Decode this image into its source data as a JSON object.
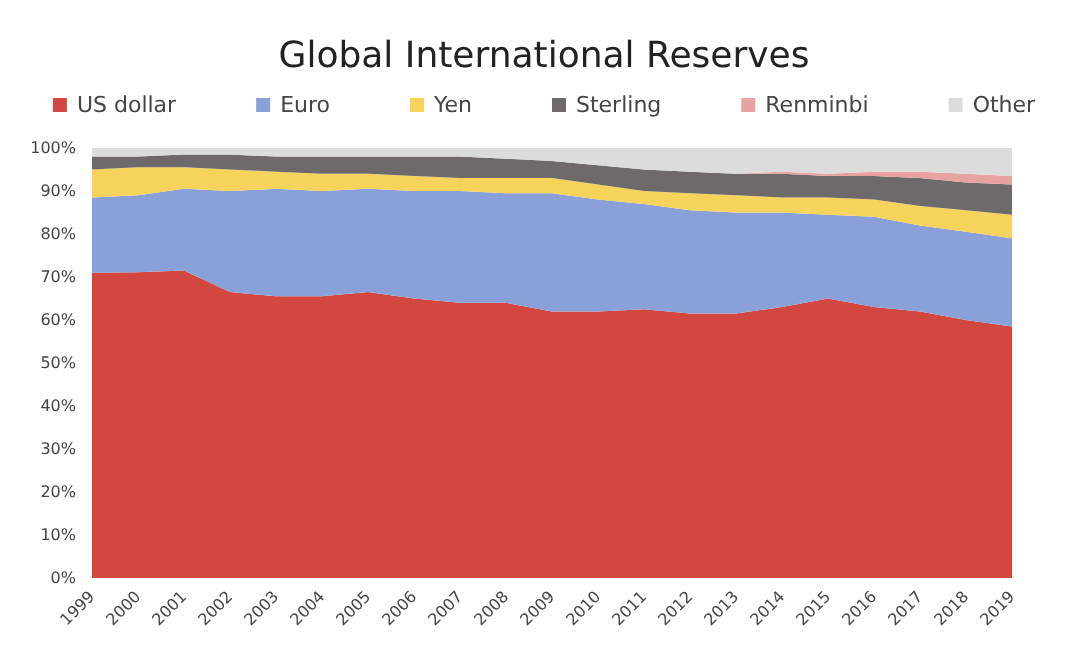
{
  "chart_data": {
    "type": "area",
    "title": "Global International Reserves",
    "stacked": true,
    "legend": "top",
    "grid": false,
    "categories": [
      "1999",
      "2000",
      "2001",
      "2002",
      "2003",
      "2004",
      "2005",
      "2006",
      "2007",
      "2008",
      "2009",
      "2010",
      "2011",
      "2012",
      "2013",
      "2014",
      "2015",
      "2016",
      "2017",
      "2018",
      "2019"
    ],
    "ylim": [
      0,
      100
    ],
    "yticks": [
      {
        "value": 0,
        "label": "0%"
      },
      {
        "value": 10,
        "label": "10%"
      },
      {
        "value": 20,
        "label": "20%"
      },
      {
        "value": 30,
        "label": "30%"
      },
      {
        "value": 40,
        "label": "40%"
      },
      {
        "value": 50,
        "label": "50%"
      },
      {
        "value": 60,
        "label": "60%"
      },
      {
        "value": 70,
        "label": "70%"
      },
      {
        "value": 80,
        "label": "80%"
      },
      {
        "value": 90,
        "label": "90%"
      },
      {
        "value": 100,
        "label": "100%"
      }
    ],
    "series": [
      {
        "name": "US dollar",
        "color": "#d2473f",
        "values": [
          71,
          71.1,
          71.5,
          66.5,
          65.5,
          65.5,
          66.5,
          65,
          64,
          64,
          62,
          62,
          62.5,
          61.5,
          61.5,
          63,
          65,
          63,
          62,
          60,
          58.5
        ]
      },
      {
        "name": "Euro",
        "color": "#8aa0d8",
        "values": [
          17.5,
          17.9,
          19,
          23.5,
          25,
          24.5,
          24,
          25,
          26,
          25.5,
          27.5,
          26,
          24.5,
          24,
          23.5,
          22,
          19.5,
          21,
          20,
          20.5,
          20.5
        ]
      },
      {
        "name": "Yen",
        "color": "#f6d35b",
        "values": [
          6.5,
          6.5,
          5,
          5,
          4,
          4,
          3.5,
          3.5,
          3,
          3.5,
          3.5,
          3.5,
          3,
          4,
          4,
          3.5,
          4,
          4,
          4.5,
          5,
          5.5
        ]
      },
      {
        "name": "Sterling",
        "color": "#6e6a6c",
        "values": [
          3,
          2.5,
          3,
          3.5,
          3.5,
          4,
          4,
          4.5,
          5,
          4.5,
          4,
          4.5,
          5,
          5,
          5,
          5.5,
          5,
          5.5,
          6.5,
          6.5,
          7
        ]
      },
      {
        "name": "Renminbi",
        "color": "#e8a3a0",
        "values": [
          0,
          0,
          0,
          0,
          0,
          0,
          0,
          0,
          0,
          0,
          0,
          0,
          0,
          0,
          0,
          0.5,
          0.5,
          1,
          1.5,
          2,
          2
        ]
      },
      {
        "name": "Other",
        "color": "#dcdcdc",
        "values": [
          2,
          2,
          1.5,
          1.5,
          2,
          2,
          2,
          2,
          2,
          2.5,
          3,
          4,
          5,
          5.5,
          6,
          5.5,
          6,
          5.5,
          5.5,
          6,
          6.5
        ]
      }
    ]
  }
}
